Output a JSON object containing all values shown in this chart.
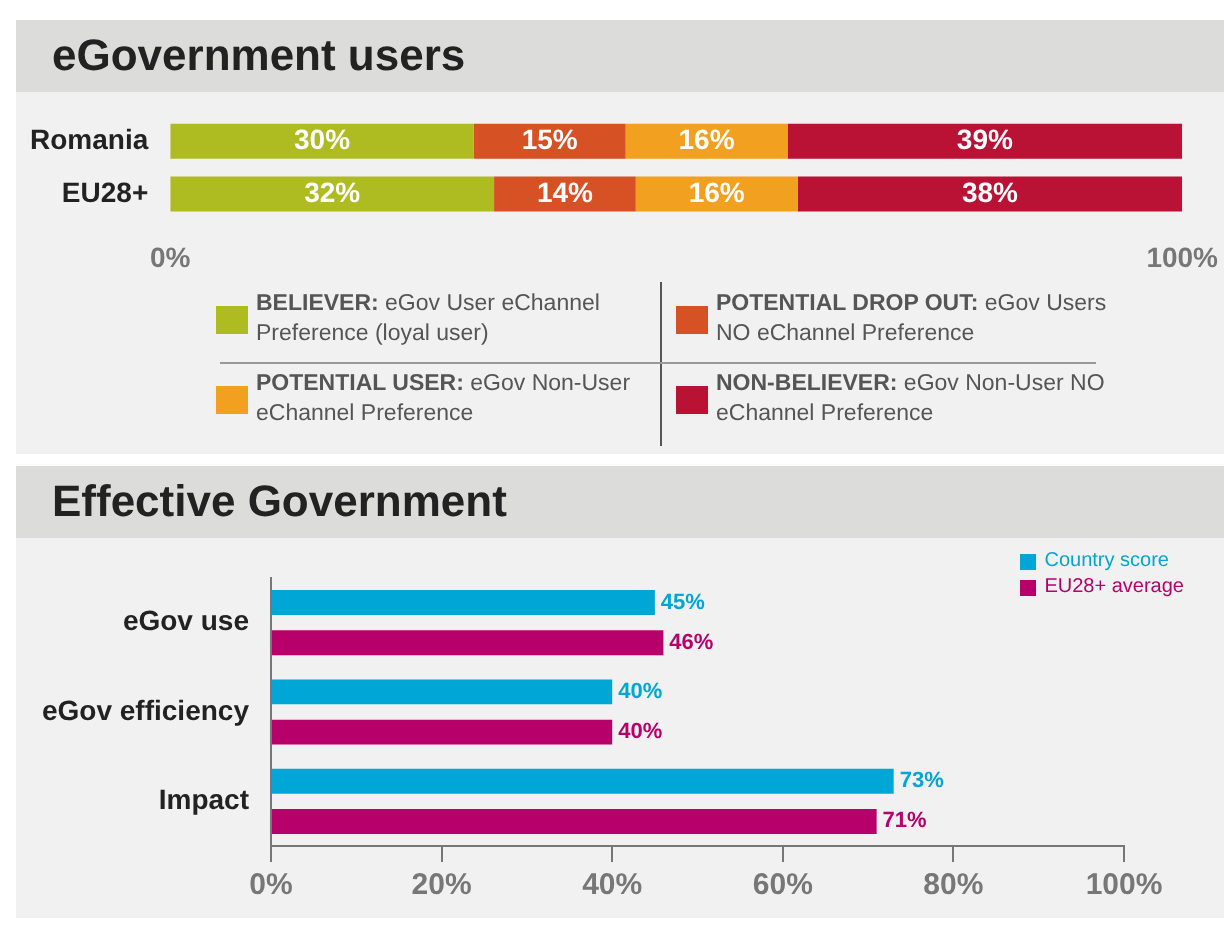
{
  "chart_data": [
    {
      "type": "bar",
      "title": "eGovernment users",
      "orientation": "horizontal",
      "stacked": true,
      "categories": [
        "Romania",
        "EU28+"
      ],
      "series": [
        {
          "name": "BELIEVER: eGov User eChannel Preference (loyal user)",
          "color": "#aebc22",
          "values": [
            30,
            32
          ],
          "value_labels": [
            "30%",
            "32%"
          ]
        },
        {
          "name": "POTENTIAL DROP OUT: eGov Users NO eChannel Preference",
          "color": "#d65225",
          "values": [
            15,
            14
          ],
          "value_labels": [
            "15%",
            "14%"
          ]
        },
        {
          "name": "POTENTIAL USER: eGov Non-User eChannel Preference",
          "color": "#f2a01f",
          "values": [
            16,
            16
          ],
          "value_labels": [
            "16%",
            "16%"
          ]
        },
        {
          "name": "NON-BELIEVER: eGov Non-User NO eChannel Preference",
          "color": "#b91234",
          "values": [
            39,
            38
          ],
          "value_labels": [
            "39%",
            "38%"
          ]
        }
      ],
      "xlim": [
        0,
        100
      ],
      "xticks": [
        {
          "value": 0,
          "label": "0%"
        },
        {
          "value": 100,
          "label": "100%"
        }
      ],
      "legend": "bottom",
      "grid": false
    },
    {
      "type": "bar",
      "title": "Effective Government",
      "orientation": "horizontal",
      "categories": [
        "eGov use",
        "eGov efficiency",
        "Impact"
      ],
      "series": [
        {
          "name": "Country score",
          "color": "#00a6d6",
          "values": [
            45,
            40,
            73
          ],
          "value_labels": [
            "45%",
            "40%",
            "73%"
          ]
        },
        {
          "name": "EU28+ average",
          "color": "#b8006a",
          "values": [
            46,
            40,
            71
          ],
          "value_labels": [
            "46%",
            "40%",
            "71%"
          ]
        }
      ],
      "xlim": [
        0,
        100
      ],
      "xticks": [
        {
          "value": 0,
          "label": "0%"
        },
        {
          "value": 20,
          "label": "20%"
        },
        {
          "value": 40,
          "label": "40%"
        },
        {
          "value": 60,
          "label": "60%"
        },
        {
          "value": 80,
          "label": "80%"
        },
        {
          "value": 100,
          "label": "100%"
        }
      ],
      "legend": "top right",
      "grid": false
    }
  ]
}
